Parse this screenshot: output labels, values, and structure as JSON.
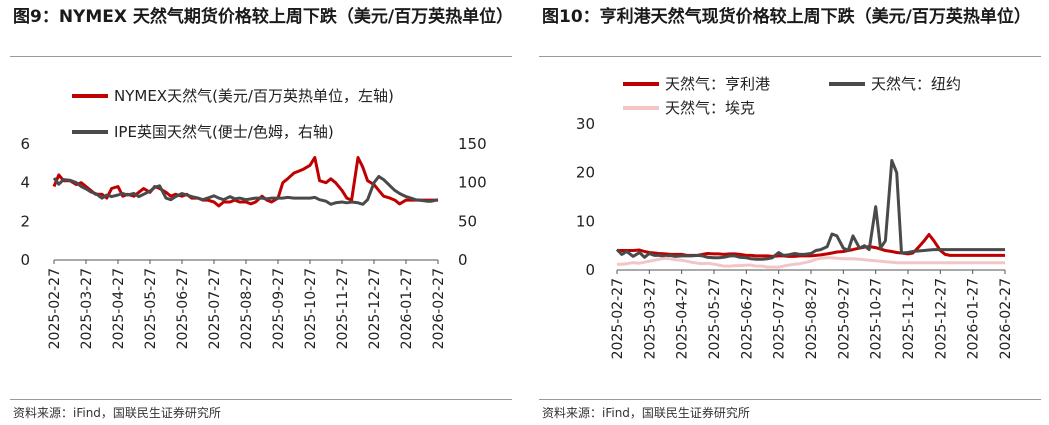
{
  "source_label": "资料来源：iFind，国联民生证券研究所",
  "colors": {
    "red": "#c00000",
    "dark": "#4a4a4a",
    "pink": "#f2c6c6"
  },
  "chart_data": [
    {
      "type": "line",
      "title": "图9：NYMEX 天然气期货价格较上周下跌（美元/百万英热单位）",
      "legend_placement": "top",
      "x_ticks": [
        "2025-02-27",
        "2025-03-27",
        "2025-04-27",
        "2025-05-27",
        "2025-06-27",
        "2025-07-27",
        "2025-08-27",
        "2025-09-27",
        "2025-10-27",
        "2025-11-27",
        "2025-12-27",
        "2026-01-27",
        "2026-02-27"
      ],
      "y_left": {
        "range": [
          0,
          6
        ],
        "ticks": [
          "0",
          "2",
          "4",
          "6"
        ]
      },
      "y_right": {
        "range": [
          0,
          150
        ],
        "ticks": [
          "0",
          "50",
          "100",
          "150"
        ]
      },
      "series": [
        {
          "name": "NYMEX天然气(美元/百万英热单位，左轴)",
          "axis": "left",
          "color": "#c00000",
          "x": [
            0,
            0.15,
            0.3,
            0.5,
            0.7,
            0.85,
            1,
            1.15,
            1.3,
            1.5,
            1.65,
            1.8,
            2,
            2.15,
            2.3,
            2.5,
            2.65,
            2.8,
            3,
            3.15,
            3.3,
            3.5,
            3.65,
            3.8,
            4,
            4.15,
            4.3,
            4.5,
            4.65,
            4.8,
            5,
            5.15,
            5.3,
            5.5,
            5.65,
            5.8,
            6,
            6.15,
            6.3,
            6.5,
            6.65,
            6.8,
            7,
            7.15,
            7.3,
            7.5,
            7.65,
            7.8,
            8,
            8.15,
            8.3,
            8.5,
            8.65,
            8.8,
            9,
            9.15,
            9.3,
            9.5,
            9.65,
            9.8,
            10,
            10.15,
            10.3,
            10.5,
            10.65,
            10.8,
            11,
            11.15,
            11.3,
            11.5,
            11.65,
            11.8,
            12
          ],
          "values": [
            3.8,
            4.4,
            4.1,
            4.1,
            3.9,
            4,
            3.8,
            3.6,
            3.4,
            3.4,
            3.2,
            3.7,
            3.8,
            3.3,
            3.4,
            3.3,
            3.5,
            3.7,
            3.5,
            3.8,
            3.7,
            3.5,
            3.3,
            3.4,
            3.3,
            3.4,
            3.2,
            3.2,
            3.1,
            3.1,
            3,
            2.8,
            3,
            3,
            3.1,
            3,
            3,
            2.9,
            3,
            3.3,
            3.1,
            3,
            3.2,
            4,
            4.2,
            4.5,
            4.6,
            4.7,
            4.9,
            5.3,
            4.1,
            4,
            4.2,
            4,
            3.6,
            3.2,
            3.1,
            5.3,
            4.8,
            4.1,
            3.9,
            3.6,
            3.3,
            3.2,
            3.1,
            2.9,
            3.1,
            3.1,
            3.1,
            3.1,
            3.1,
            3.1,
            3.1
          ]
        },
        {
          "name": "IPE英国天然气(便士/色姆，右轴)",
          "axis": "right",
          "color": "#4a4a4a",
          "x": [
            0,
            0.15,
            0.3,
            0.5,
            0.7,
            0.85,
            1,
            1.15,
            1.3,
            1.5,
            1.65,
            1.8,
            2,
            2.15,
            2.3,
            2.5,
            2.65,
            2.8,
            3,
            3.15,
            3.3,
            3.5,
            3.65,
            3.8,
            4,
            4.15,
            4.3,
            4.5,
            4.65,
            4.8,
            5,
            5.15,
            5.3,
            5.5,
            5.65,
            5.8,
            6,
            6.15,
            6.3,
            6.5,
            6.65,
            6.8,
            7,
            7.15,
            7.3,
            7.5,
            7.65,
            7.8,
            8,
            8.15,
            8.3,
            8.5,
            8.65,
            8.8,
            9,
            9.15,
            9.3,
            9.5,
            9.65,
            9.8,
            10,
            10.15,
            10.3,
            10.5,
            10.65,
            10.8,
            11,
            11.15,
            11.3,
            11.5,
            11.65,
            11.8,
            12
          ],
          "values": [
            106,
            98,
            104,
            103,
            100,
            95,
            92,
            88,
            86,
            80,
            84,
            82,
            84,
            86,
            84,
            86,
            82,
            85,
            89,
            94,
            96,
            80,
            78,
            82,
            86,
            84,
            82,
            80,
            78,
            80,
            83,
            80,
            78,
            82,
            79,
            80,
            78,
            79,
            80,
            80,
            79,
            80,
            80,
            80,
            81,
            80,
            80,
            80,
            80,
            81,
            78,
            76,
            72,
            74,
            75,
            74,
            75,
            74,
            72,
            78,
            100,
            108,
            104,
            96,
            90,
            86,
            82,
            80,
            78,
            77,
            76,
            76,
            78
          ]
        }
      ]
    },
    {
      "type": "line",
      "title": "图10：亨利港天然气现货价格较上周下跌（美元/百万英热单位）",
      "legend_placement": "top",
      "x_ticks": [
        "2025-02-27",
        "2025-03-27",
        "2025-04-27",
        "2025-05-27",
        "2025-06-27",
        "2025-07-27",
        "2025-08-27",
        "2025-09-27",
        "2025-10-27",
        "2025-11-27",
        "2025-12-27",
        "2026-01-27",
        "2026-02-27"
      ],
      "y_left": {
        "range": [
          0,
          30
        ],
        "ticks": [
          "0",
          "10",
          "20",
          "30"
        ]
      },
      "series": [
        {
          "name": "天然气：亨利港",
          "color": "#c00000",
          "x": [
            0,
            0.15,
            0.3,
            0.5,
            0.7,
            0.85,
            1,
            1.15,
            1.3,
            1.5,
            1.65,
            1.8,
            2,
            2.15,
            2.3,
            2.5,
            2.65,
            2.8,
            3,
            3.15,
            3.3,
            3.5,
            3.65,
            3.8,
            4,
            4.15,
            4.3,
            4.5,
            4.65,
            4.8,
            5,
            5.15,
            5.3,
            5.5,
            5.65,
            5.8,
            6,
            6.15,
            6.3,
            6.5,
            6.65,
            6.8,
            7,
            7.15,
            7.3,
            7.5,
            7.65,
            7.8,
            8,
            8.15,
            8.3,
            8.5,
            8.65,
            8.8,
            9,
            9.15,
            9.3,
            9.5,
            9.65,
            9.8,
            10,
            10.15,
            10.3,
            10.5,
            10.65,
            10.8,
            11,
            11.15,
            11.3,
            11.5,
            11.65,
            11.8,
            12
          ],
          "values": [
            4,
            4,
            4,
            4,
            4.1,
            3.8,
            3.6,
            3.5,
            3.4,
            3.3,
            3.2,
            3.2,
            3.2,
            3,
            3,
            3,
            3.2,
            3.4,
            3.3,
            3.3,
            3.2,
            3.3,
            3.3,
            3.2,
            3,
            3,
            2.9,
            2.9,
            2.9,
            2.8,
            2.9,
            2.9,
            2.8,
            2.8,
            2.9,
            2.9,
            2.9,
            3,
            3.1,
            3.3,
            3.5,
            3.7,
            3.8,
            4,
            4.2,
            4.5,
            4.7,
            4.8,
            4.6,
            4.3,
            4,
            3.8,
            3.6,
            3.5,
            3.3,
            3.5,
            4.5,
            6,
            7.3,
            6,
            4,
            3.2,
            3,
            3,
            3,
            3,
            3,
            3,
            3,
            3,
            3,
            3,
            3
          ]
        },
        {
          "name": "天然气：纽约",
          "color": "#4a4a4a",
          "x": [
            0,
            0.15,
            0.3,
            0.5,
            0.7,
            0.85,
            1,
            1.15,
            1.3,
            1.5,
            1.65,
            1.8,
            2,
            2.15,
            2.3,
            2.5,
            2.65,
            2.8,
            3,
            3.15,
            3.3,
            3.5,
            3.65,
            3.8,
            4,
            4.15,
            4.3,
            4.5,
            4.65,
            4.8,
            5,
            5.15,
            5.3,
            5.5,
            5.65,
            5.8,
            6,
            6.15,
            6.3,
            6.5,
            6.65,
            6.8,
            7,
            7.15,
            7.3,
            7.5,
            7.65,
            7.8,
            8,
            8.15,
            8.3,
            8.5,
            8.65,
            8.8,
            9,
            9.15,
            9.3,
            9.5,
            9.65,
            9.8,
            10,
            10.15,
            10.3,
            10.5,
            10.65,
            10.8,
            11,
            11.15,
            11.3,
            11.5,
            11.65,
            11.8,
            12
          ],
          "values": [
            4.2,
            3.2,
            3.8,
            2.8,
            3.6,
            2.6,
            3.4,
            3,
            3,
            2.8,
            3,
            2.8,
            2.9,
            2.9,
            2.9,
            3,
            2.9,
            2.6,
            2.5,
            2.5,
            2.6,
            2.9,
            2.9,
            2.6,
            2.5,
            2.3,
            2.2,
            2.2,
            2.3,
            2.5,
            3.6,
            3,
            3.1,
            3.4,
            3.2,
            3.2,
            3.4,
            4,
            4.2,
            4.8,
            7.4,
            7,
            4.5,
            4,
            7,
            4.5,
            5,
            4.2,
            13,
            4.5,
            6,
            22.5,
            20,
            3.5,
            3.6,
            3.8,
            3.9,
            4,
            4.1,
            4.2,
            4.2,
            4.2,
            4.2,
            4.2,
            4.2,
            4.2,
            4.2,
            4.2,
            4.2,
            4.2,
            4.2,
            4.2,
            4.2
          ]
        },
        {
          "name": "天然气：埃克",
          "color": "#f2c6c6",
          "x": [
            0,
            0.15,
            0.3,
            0.5,
            0.7,
            0.85,
            1,
            1.15,
            1.3,
            1.5,
            1.65,
            1.8,
            2,
            2.15,
            2.3,
            2.5,
            2.65,
            2.8,
            3,
            3.15,
            3.3,
            3.5,
            3.65,
            3.8,
            4,
            4.15,
            4.3,
            4.5,
            4.65,
            4.8,
            5,
            5.15,
            5.3,
            5.5,
            5.65,
            5.8,
            6,
            6.15,
            6.3,
            6.5,
            6.65,
            6.8,
            7,
            7.15,
            7.3,
            7.5,
            7.65,
            7.8,
            8,
            8.15,
            8.3,
            8.5,
            8.65,
            8.8,
            9,
            9.15,
            9.3,
            9.5,
            9.65,
            9.8,
            10,
            10.15,
            10.3,
            10.5,
            10.65,
            10.8,
            11,
            11.15,
            11.3,
            11.5,
            11.65,
            11.8,
            12
          ],
          "values": [
            1.2,
            1.2,
            1.3,
            1.5,
            1.4,
            1.6,
            1.8,
            2,
            2.2,
            2.4,
            2.3,
            2.1,
            2,
            1.8,
            1.6,
            1.4,
            1.3,
            1.4,
            1.2,
            1,
            0.8,
            0.8,
            0.9,
            0.9,
            1,
            1,
            0.8,
            0.8,
            0.6,
            0.6,
            0.6,
            0.8,
            1,
            1.2,
            1.3,
            1.5,
            1.8,
            2.2,
            2.4,
            2.5,
            2.5,
            2.4,
            2.3,
            2.3,
            2.3,
            2.2,
            2.1,
            2,
            1.9,
            1.8,
            1.7,
            1.6,
            1.5,
            1.5,
            1.5,
            1.5,
            1.5,
            1.5,
            1.5,
            1.5,
            1.5,
            1.5,
            1.5,
            1.5,
            1.5,
            1.5,
            1.5,
            1.5,
            1.5,
            1.5,
            1.5,
            1.5,
            1.5
          ]
        }
      ]
    }
  ]
}
